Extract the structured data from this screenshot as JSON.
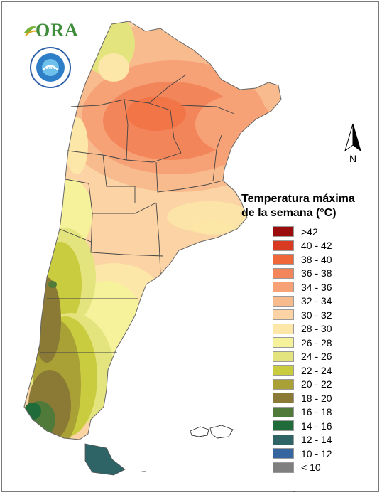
{
  "logos": {
    "ora_text": "ORA",
    "smn_seal_text": "SERVICIO METEOROLOGICO NACIONAL · ARGENTINA"
  },
  "north_arrow": {
    "label": "N"
  },
  "legend": {
    "title_line1": "Temperatura máxima",
    "title_line2": "de la semana (°C)",
    "items": [
      {
        "label": ">42",
        "color": "#9b0d0d"
      },
      {
        "label": "40 - 42",
        "color": "#d93a22"
      },
      {
        "label": "38 - 40",
        "color": "#f0683a"
      },
      {
        "label": "36 - 38",
        "color": "#f3855a"
      },
      {
        "label": "34 - 36",
        "color": "#f6a276"
      },
      {
        "label": "32 - 34",
        "color": "#f8bb8e"
      },
      {
        "label": "30 - 32",
        "color": "#fbd3a4"
      },
      {
        "label": "28 - 30",
        "color": "#fce7a8"
      },
      {
        "label": "26 - 28",
        "color": "#f6f29c"
      },
      {
        "label": "24 - 26",
        "color": "#e3e47e"
      },
      {
        "label": "22 - 24",
        "color": "#c9cc3e"
      },
      {
        "label": "20 - 22",
        "color": "#a9a036"
      },
      {
        "label": "18 - 20",
        "color": "#8a7a35"
      },
      {
        "label": "16 - 18",
        "color": "#4f7a39"
      },
      {
        "label": "14 - 16",
        "color": "#1f6b3a"
      },
      {
        "label": "12 - 14",
        "color": "#2e6466"
      },
      {
        "label": "10 - 12",
        "color": "#3566a0"
      },
      {
        "label": "< 10",
        "color": "#7f7f7f"
      }
    ]
  }
}
